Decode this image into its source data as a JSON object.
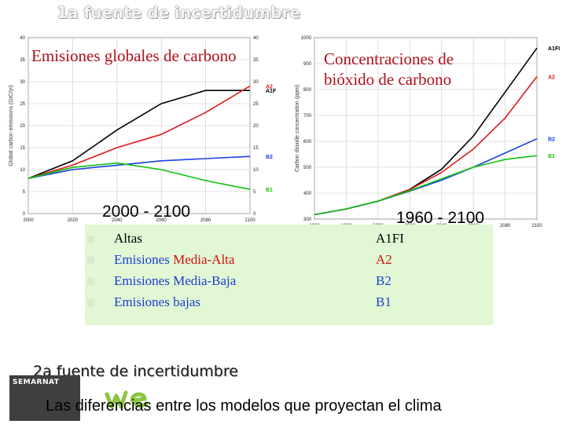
{
  "slide": {
    "title": "1a fuente de incertidumbre",
    "subtitle": "2a fuente de incertidumbre",
    "footer": "Las diferencias entre los modelos que proyectan el clima"
  },
  "legend": {
    "items": [
      {
        "label": "Altas",
        "code": "A1FI",
        "color": "#000000"
      },
      {
        "label": "Emisiones Media-Alta",
        "code": "A2",
        "color": "#d01010"
      },
      {
        "label": "Emisiones Media-Baja",
        "code": "B2",
        "color": "#1a3fd0"
      },
      {
        "label": "Emisiones bajas",
        "code": "B1",
        "color": "#000000"
      }
    ]
  },
  "logo": {
    "name": "SEMARNAT"
  },
  "chart_data": [
    {
      "type": "line",
      "title": "Emisiones globales de carbono",
      "range_label": "2000 - 2100",
      "ylabel": "Global carbon emissions (GtC/yr)",
      "xlim": [
        2000,
        2100
      ],
      "ylim": [
        0,
        40
      ],
      "xticks": [
        2000,
        2020,
        2040,
        2060,
        2080,
        2100
      ],
      "yticks": [
        0,
        5,
        10,
        15,
        20,
        25,
        30,
        35,
        40
      ],
      "grid": true,
      "series": [
        {
          "name": "A1F",
          "color": "#000000",
          "x": [
            2000,
            2020,
            2040,
            2060,
            2080,
            2100
          ],
          "y": [
            8,
            12,
            19,
            25,
            28,
            28
          ]
        },
        {
          "name": "A2",
          "color": "#e01a1a",
          "x": [
            2000,
            2020,
            2040,
            2060,
            2080,
            2100
          ],
          "y": [
            8,
            11,
            15,
            18,
            23,
            29
          ]
        },
        {
          "name": "B2",
          "color": "#1a3fe0",
          "x": [
            2000,
            2020,
            2040,
            2060,
            2080,
            2100
          ],
          "y": [
            8,
            10,
            11,
            12,
            12.5,
            13
          ]
        },
        {
          "name": "B1",
          "color": "#10c010",
          "x": [
            2000,
            2020,
            2040,
            2060,
            2080,
            2100
          ],
          "y": [
            8,
            10.5,
            11.5,
            10,
            7.5,
            5.5
          ]
        }
      ]
    },
    {
      "type": "line",
      "title": "Concentraciones de bióxido de carbono",
      "range_label": "1960 - 2100",
      "ylabel": "Carbon dioxide concentration (ppm)",
      "xlim": [
        1960,
        2100
      ],
      "ylim": [
        300,
        1000
      ],
      "xticks": [
        1960,
        1980,
        2000,
        2020,
        2040,
        2060,
        2080,
        2100
      ],
      "yticks": [
        300,
        400,
        500,
        600,
        700,
        800,
        900,
        1000
      ],
      "grid": true,
      "series": [
        {
          "name": "A1FI",
          "color": "#000000",
          "x": [
            1960,
            1980,
            2000,
            2020,
            2040,
            2060,
            2080,
            2100
          ],
          "y": [
            317,
            339,
            369,
            415,
            492,
            620,
            790,
            960
          ]
        },
        {
          "name": "A2",
          "color": "#e01a1a",
          "x": [
            1960,
            1980,
            2000,
            2020,
            2040,
            2060,
            2080,
            2100
          ],
          "y": [
            317,
            339,
            369,
            414,
            480,
            570,
            690,
            850
          ]
        },
        {
          "name": "B2",
          "color": "#1a3fe0",
          "x": [
            1960,
            1980,
            2000,
            2020,
            2040,
            2060,
            2080,
            2100
          ],
          "y": [
            317,
            339,
            369,
            408,
            450,
            500,
            555,
            610
          ]
        },
        {
          "name": "B1",
          "color": "#10c010",
          "x": [
            1960,
            1980,
            2000,
            2020,
            2040,
            2060,
            2080,
            2100
          ],
          "y": [
            317,
            339,
            369,
            410,
            455,
            500,
            530,
            545
          ]
        }
      ]
    }
  ]
}
